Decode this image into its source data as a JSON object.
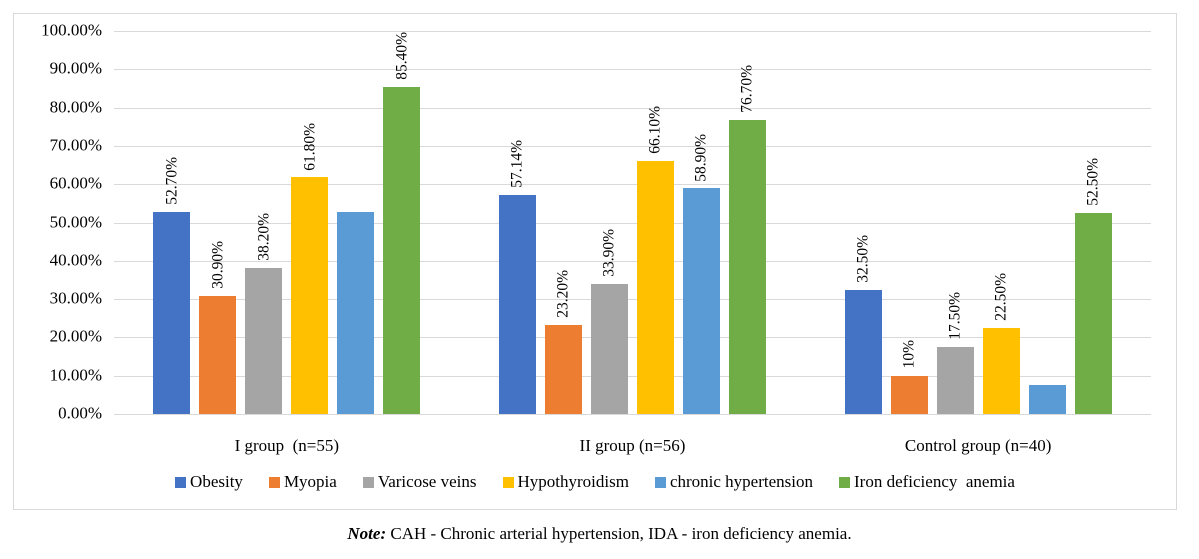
{
  "note": {
    "label": "Note:",
    "text": " CAH - Chronic arterial hypertension, IDA - iron deficiency anemia."
  },
  "chart_data": {
    "type": "bar",
    "title": "",
    "categories": [
      "I group  (n=55)",
      "II group (n=56)",
      "Control group (n=40)"
    ],
    "series": [
      {
        "name": "Obesity",
        "color": "#4472C4",
        "values": [
          52.7,
          57.14,
          32.5
        ],
        "labels": [
          "52.70%",
          "57.14%",
          "32.50%"
        ]
      },
      {
        "name": "Myopia",
        "color": "#ED7D31",
        "values": [
          30.9,
          23.2,
          10
        ],
        "labels": [
          "30.90%",
          "23.20%",
          "10%"
        ]
      },
      {
        "name": "Varicose veins",
        "color": "#A5A5A5",
        "values": [
          38.2,
          33.9,
          17.5
        ],
        "labels": [
          "38.20%",
          "33.90%",
          "17.50%"
        ]
      },
      {
        "name": "Hypothyroidism",
        "color": "#FFC000",
        "values": [
          61.8,
          66.1,
          22.5
        ],
        "labels": [
          "61.80%",
          "66.10%",
          "22.50%"
        ]
      },
      {
        "name": "chronic hypertension",
        "color": "#5B9BD5",
        "values": [
          52.7,
          58.9,
          7.5
        ],
        "labels": [
          "",
          "58.90%",
          ""
        ]
      },
      {
        "name": "Iron deficiency  anemia",
        "color": "#70AD47",
        "values": [
          85.4,
          76.7,
          52.5
        ],
        "labels": [
          "85.40%",
          "76.70%",
          "52.50%"
        ]
      }
    ],
    "y_axis": {
      "min": 0,
      "max": 100,
      "step": 10,
      "tick_labels": [
        "0.00%",
        "10.00%",
        "20.00%",
        "30.00%",
        "40.00%",
        "50.00%",
        "60.00%",
        "70.00%",
        "80.00%",
        "90.00%",
        "100.00%"
      ]
    },
    "grid": true,
    "legend_position": "bottom"
  }
}
